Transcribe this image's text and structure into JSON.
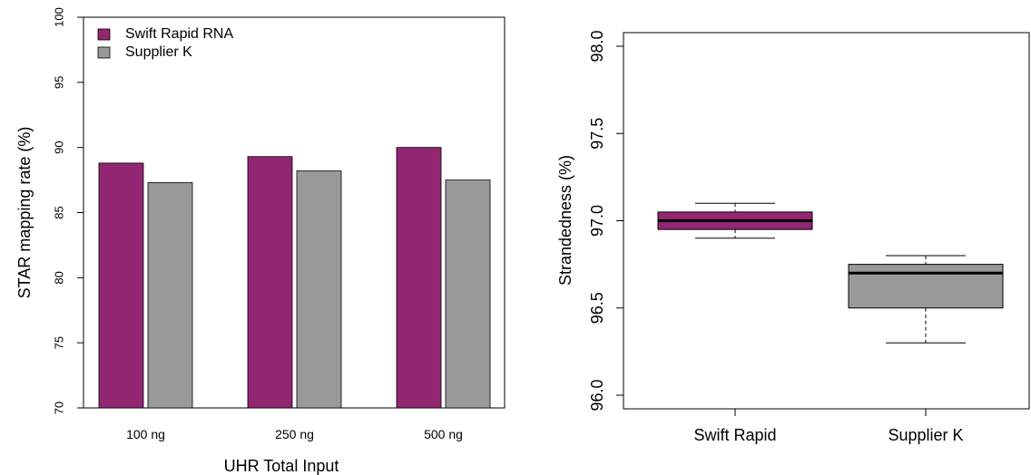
{
  "colors": {
    "swift": "#922672",
    "supplier": "#999999",
    "axis": "#000000"
  },
  "chart_data": [
    {
      "type": "bar",
      "xlabel": "UHR Total Input",
      "ylabel": "STAR mapping rate (%)",
      "ylim": [
        70,
        100
      ],
      "yticks": [
        "70",
        "75",
        "80",
        "85",
        "90",
        "95",
        "100"
      ],
      "categories": [
        "100 ng",
        "250 ng",
        "500 ng"
      ],
      "legend_position": "top-left",
      "series": [
        {
          "name": "Swift Rapid RNA",
          "color_key": "swift",
          "values": [
            88.8,
            89.3,
            90.0
          ]
        },
        {
          "name": "Supplier K",
          "color_key": "supplier",
          "values": [
            87.3,
            88.2,
            87.5
          ]
        }
      ]
    },
    {
      "type": "box",
      "xlabel": "",
      "ylabel": "Strandedness (%)",
      "ylim": [
        96.0,
        98.0
      ],
      "yticks": [
        "96.0",
        "96.5",
        "97.0",
        "97.5",
        "98.0"
      ],
      "categories": [
        "Swift Rapid",
        "Supplier K"
      ],
      "boxes": [
        {
          "color_key": "swift",
          "min": 96.9,
          "q1": 96.95,
          "median": 97.0,
          "q3": 97.05,
          "max": 97.1
        },
        {
          "color_key": "supplier",
          "min": 96.3,
          "q1": 96.5,
          "median": 96.7,
          "q3": 96.75,
          "max": 96.8
        }
      ]
    }
  ]
}
